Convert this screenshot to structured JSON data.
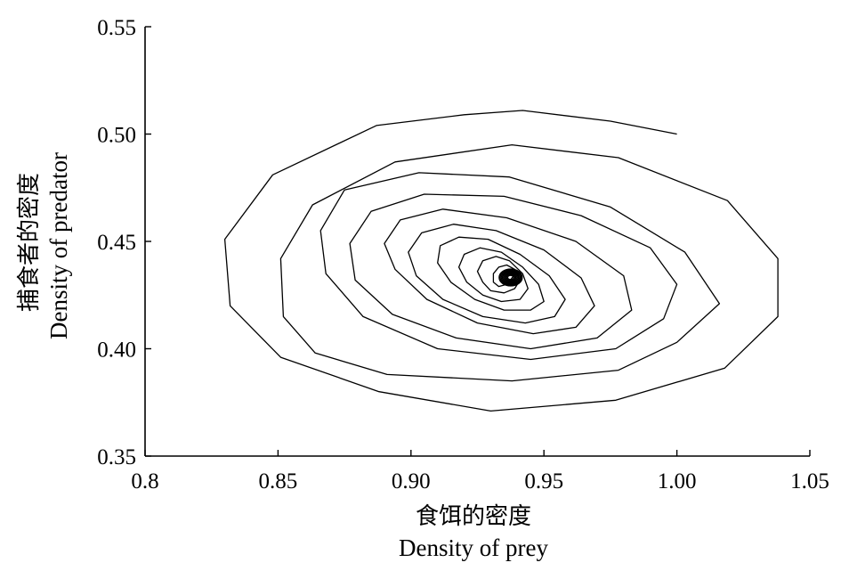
{
  "chart_data": {
    "type": "line",
    "title": "",
    "xlabel": [
      "食饵的密度",
      "Density of prey"
    ],
    "ylabel": [
      "捕食者的密度",
      "Density of predator"
    ],
    "xlim": [
      0.8,
      1.05
    ],
    "ylim": [
      0.35,
      0.55
    ],
    "x_ticks": [
      "0.8",
      "0.85",
      "0.90",
      "0.95",
      "1.00",
      "1.05"
    ],
    "y_ticks": [
      "0.35",
      "0.40",
      "0.45",
      "0.50",
      "0.55"
    ],
    "grid": false,
    "line_color": "#000000",
    "series": [
      {
        "x": [
          1.0,
          0.975,
          0.942,
          0.92,
          0.887,
          0.848,
          0.83,
          0.832,
          0.851,
          0.888,
          0.93,
          0.977,
          1.018,
          1.038,
          1.038,
          1.019,
          0.978,
          0.938,
          0.894,
          0.863,
          0.851,
          0.852,
          0.864,
          0.891,
          0.938,
          0.978,
          1.0,
          1.016,
          1.003,
          0.975,
          0.937,
          0.903,
          0.875,
          0.866,
          0.868,
          0.882,
          0.91,
          0.945,
          0.977,
          0.995,
          1.0,
          0.99,
          0.964,
          0.935,
          0.905,
          0.885,
          0.877,
          0.879,
          0.893,
          0.917,
          0.945,
          0.97,
          0.983,
          0.98,
          0.962,
          0.936,
          0.912,
          0.896,
          0.89,
          0.894,
          0.906,
          0.925,
          0.946,
          0.962,
          0.969,
          0.964,
          0.95,
          0.932,
          0.916,
          0.904,
          0.899,
          0.902,
          0.912,
          0.927,
          0.943,
          0.954,
          0.958,
          0.952,
          0.941,
          0.929,
          0.918,
          0.911,
          0.91,
          0.915,
          0.924,
          0.935,
          0.945,
          0.95,
          0.948,
          0.942,
          0.934,
          0.926,
          0.92,
          0.918,
          0.921,
          0.927,
          0.934,
          0.941,
          0.944,
          0.942,
          0.937,
          0.932,
          0.927,
          0.925,
          0.927,
          0.93,
          0.935,
          0.939,
          0.941,
          0.939,
          0.936,
          0.933,
          0.931,
          0.931,
          0.933,
          0.936,
          0.938,
          0.939,
          0.938
        ],
        "y": [
          0.5,
          0.506,
          0.511,
          0.509,
          0.504,
          0.481,
          0.451,
          0.42,
          0.396,
          0.38,
          0.371,
          0.376,
          0.391,
          0.415,
          0.442,
          0.469,
          0.489,
          0.495,
          0.487,
          0.467,
          0.442,
          0.415,
          0.398,
          0.388,
          0.385,
          0.39,
          0.403,
          0.421,
          0.445,
          0.466,
          0.48,
          0.482,
          0.474,
          0.455,
          0.435,
          0.415,
          0.4,
          0.395,
          0.4,
          0.414,
          0.43,
          0.447,
          0.462,
          0.471,
          0.472,
          0.464,
          0.449,
          0.432,
          0.416,
          0.405,
          0.4,
          0.405,
          0.418,
          0.434,
          0.45,
          0.461,
          0.465,
          0.46,
          0.449,
          0.437,
          0.423,
          0.412,
          0.407,
          0.41,
          0.42,
          0.433,
          0.446,
          0.455,
          0.458,
          0.454,
          0.445,
          0.434,
          0.423,
          0.415,
          0.412,
          0.415,
          0.423,
          0.434,
          0.444,
          0.451,
          0.452,
          0.448,
          0.44,
          0.431,
          0.423,
          0.418,
          0.418,
          0.422,
          0.43,
          0.438,
          0.445,
          0.447,
          0.444,
          0.438,
          0.431,
          0.425,
          0.422,
          0.423,
          0.428,
          0.435,
          0.441,
          0.443,
          0.441,
          0.436,
          0.431,
          0.427,
          0.426,
          0.428,
          0.432,
          0.437,
          0.439,
          0.438,
          0.435,
          0.431,
          0.429,
          0.43,
          0.433,
          0.435,
          0.434
        ]
      }
    ]
  }
}
